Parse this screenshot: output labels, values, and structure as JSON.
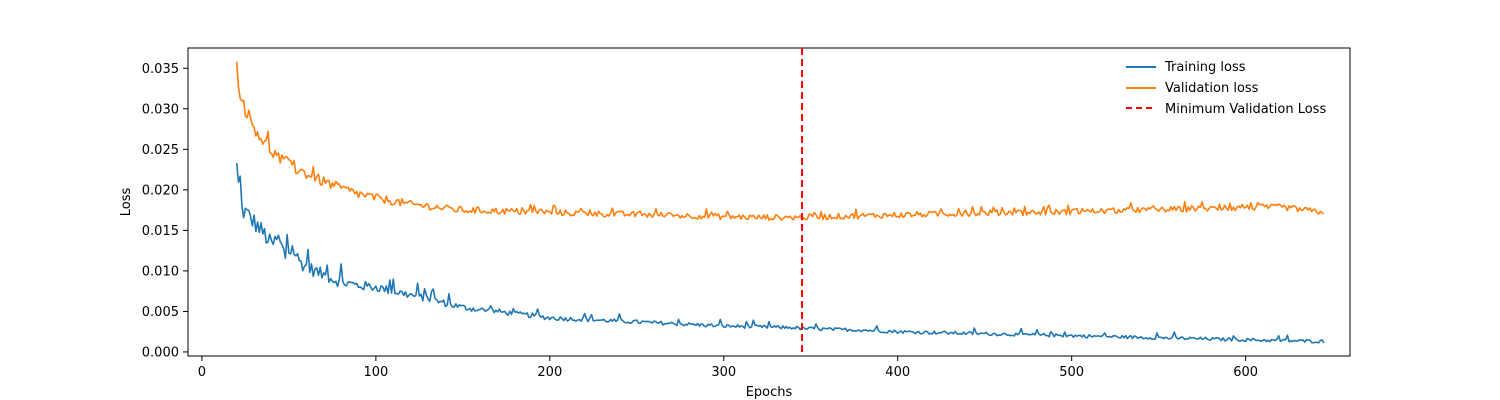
{
  "chart_data": {
    "type": "line",
    "title": "",
    "xlabel": "Epochs",
    "ylabel": "Loss",
    "xlim": [
      -8,
      660
    ],
    "ylim": [
      -0.0005,
      0.0375
    ],
    "xticks": [
      0,
      100,
      200,
      300,
      400,
      500,
      600
    ],
    "yticks": [
      0.0,
      0.005,
      0.01,
      0.015,
      0.02,
      0.025,
      0.03,
      0.035
    ],
    "xtick_labels": [
      "0",
      "100",
      "200",
      "300",
      "400",
      "500",
      "600"
    ],
    "ytick_labels": [
      "0.000",
      "0.005",
      "0.010",
      "0.015",
      "0.020",
      "0.025",
      "0.030",
      "0.035"
    ],
    "grid": false,
    "legend_position": "top-right",
    "series": [
      {
        "name": "Training loss",
        "color": "#1f77b4",
        "style": "solid",
        "points": [
          [
            20,
            0.0233
          ],
          [
            22,
            0.0178
          ],
          [
            25,
            0.0172
          ],
          [
            28,
            0.0165
          ],
          [
            32,
            0.0155
          ],
          [
            36,
            0.0145
          ],
          [
            40,
            0.0132
          ],
          [
            44,
            0.014
          ],
          [
            48,
            0.0118
          ],
          [
            52,
            0.0128
          ],
          [
            56,
            0.0112
          ],
          [
            60,
            0.0105
          ],
          [
            65,
            0.01
          ],
          [
            70,
            0.0095
          ],
          [
            75,
            0.009
          ],
          [
            80,
            0.0086
          ],
          [
            90,
            0.0082
          ],
          [
            100,
            0.008
          ],
          [
            110,
            0.0075
          ],
          [
            120,
            0.007
          ],
          [
            130,
            0.0066
          ],
          [
            140,
            0.006
          ],
          [
            150,
            0.0055
          ],
          [
            160,
            0.0052
          ],
          [
            170,
            0.005
          ],
          [
            180,
            0.0047
          ],
          [
            190,
            0.0045
          ],
          [
            200,
            0.0042
          ],
          [
            220,
            0.004
          ],
          [
            240,
            0.0038
          ],
          [
            260,
            0.0036
          ],
          [
            280,
            0.0034
          ],
          [
            300,
            0.0032
          ],
          [
            320,
            0.0031
          ],
          [
            340,
            0.003
          ],
          [
            345,
            0.0029
          ],
          [
            360,
            0.0028
          ],
          [
            380,
            0.0027
          ],
          [
            400,
            0.0025
          ],
          [
            420,
            0.0024
          ],
          [
            440,
            0.0023
          ],
          [
            460,
            0.0022
          ],
          [
            480,
            0.0021
          ],
          [
            500,
            0.002
          ],
          [
            520,
            0.0019
          ],
          [
            540,
            0.0018
          ],
          [
            560,
            0.0017
          ],
          [
            580,
            0.0016
          ],
          [
            600,
            0.0015
          ],
          [
            620,
            0.0014
          ],
          [
            645,
            0.0013
          ]
        ]
      },
      {
        "name": "Validation loss",
        "color": "#ff7f0e",
        "style": "solid",
        "points": [
          [
            20,
            0.0358
          ],
          [
            22,
            0.031
          ],
          [
            25,
            0.03
          ],
          [
            28,
            0.0285
          ],
          [
            32,
            0.0272
          ],
          [
            36,
            0.0258
          ],
          [
            40,
            0.0248
          ],
          [
            45,
            0.0238
          ],
          [
            50,
            0.023
          ],
          [
            55,
            0.0225
          ],
          [
            60,
            0.022
          ],
          [
            70,
            0.021
          ],
          [
            80,
            0.0202
          ],
          [
            90,
            0.0195
          ],
          [
            100,
            0.019
          ],
          [
            110,
            0.0186
          ],
          [
            120,
            0.0182
          ],
          [
            130,
            0.018
          ],
          [
            140,
            0.0177
          ],
          [
            150,
            0.0175
          ],
          [
            170,
            0.0174
          ],
          [
            200,
            0.0172
          ],
          [
            220,
            0.0171
          ],
          [
            240,
            0.017
          ],
          [
            260,
            0.0169
          ],
          [
            280,
            0.0168
          ],
          [
            300,
            0.0167
          ],
          [
            320,
            0.0166
          ],
          [
            345,
            0.0166
          ],
          [
            360,
            0.0167
          ],
          [
            380,
            0.0168
          ],
          [
            400,
            0.0169
          ],
          [
            420,
            0.017
          ],
          [
            440,
            0.0171
          ],
          [
            460,
            0.0172
          ],
          [
            480,
            0.0172
          ],
          [
            500,
            0.0173
          ],
          [
            520,
            0.0174
          ],
          [
            540,
            0.0175
          ],
          [
            560,
            0.0176
          ],
          [
            580,
            0.0177
          ],
          [
            600,
            0.0178
          ],
          [
            620,
            0.0179
          ],
          [
            645,
            0.0172
          ]
        ]
      },
      {
        "name": "Minimum Validation Loss",
        "color": "#ff0000",
        "style": "dashed",
        "vline_x": 345
      }
    ]
  }
}
